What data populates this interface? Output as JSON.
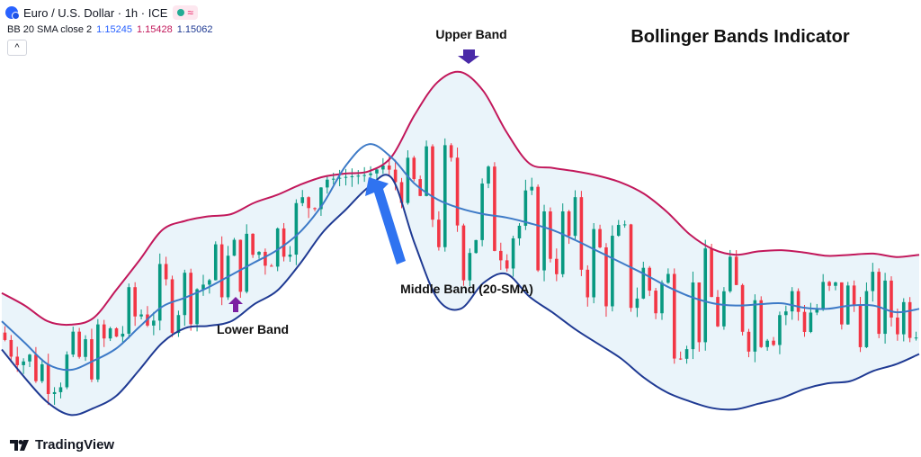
{
  "header": {
    "symbol": "Euro / U.S. Dollar · 1h · ICE",
    "badge_glyph": "≈"
  },
  "indicator": {
    "label": "BB 20 SMA close 2",
    "v1": "1.15245",
    "v2": "1.15428",
    "v3": "1.15062",
    "v1_color": "#2962ff",
    "v2_color": "#c2185b",
    "v3_color": "#1f3a93"
  },
  "collapse_glyph": "^",
  "brand": {
    "name": "TradingView"
  },
  "chart_data": {
    "type": "line",
    "title": "Bollinger Bands Indicator",
    "annotations": [
      "Upper Band",
      "Lower Band",
      "Middle Band (20-SMA)"
    ],
    "x": [
      0,
      10,
      20,
      30,
      40,
      50,
      60,
      70,
      80,
      90,
      100,
      110,
      120,
      130,
      140,
      150,
      160,
      170,
      180,
      190,
      200,
      210,
      220,
      230,
      240,
      250,
      260,
      270,
      280,
      290,
      300,
      310,
      320,
      330,
      340,
      350,
      360,
      370,
      380,
      390,
      400
    ],
    "series": [
      {
        "name": "Upper Band",
        "color": "#c2185b",
        "values": [
          1.0,
          -0.1,
          -1.5,
          -1.8,
          -1.2,
          1.3,
          3.9,
          6.6,
          7.4,
          7.8,
          8.0,
          9.0,
          9.7,
          10.6,
          11.3,
          11.6,
          11.8,
          13.1,
          16.8,
          19.7,
          20.6,
          18.9,
          15.3,
          12.5,
          12.1,
          11.8,
          11.4,
          10.8,
          9.8,
          8.2,
          6.2,
          4.9,
          4.4,
          4.7,
          4.8,
          4.6,
          4.3,
          4.4,
          4.5,
          4.2,
          4.4
        ]
      },
      {
        "name": "Middle Band (20-SMA)",
        "color": "#3d7ac7",
        "values": [
          -1.5,
          -3.4,
          -5.3,
          -5.8,
          -5.0,
          -3.9,
          -2.0,
          -0.2,
          0.6,
          1.5,
          2.6,
          3.7,
          4.8,
          6.4,
          8.9,
          12.3,
          14.2,
          13.0,
          10.7,
          9.3,
          8.5,
          8.0,
          7.7,
          7.2,
          6.6,
          5.7,
          4.7,
          3.7,
          2.7,
          1.6,
          0.7,
          0.1,
          -0.1,
          0.0,
          0.1,
          -0.3,
          -0.4,
          -0.1,
          -0.1,
          -0.7,
          -0.4
        ]
      },
      {
        "name": "Lower Band",
        "color": "#1f3a93",
        "values": [
          -4.0,
          -6.5,
          -8.7,
          -9.8,
          -9.2,
          -8.1,
          -5.8,
          -3.4,
          -2.1,
          -1.9,
          -1.5,
          0.0,
          1.2,
          3.6,
          6.4,
          8.4,
          10.4,
          11.2,
          5.4,
          0.5,
          -0.4,
          1.9,
          2.7,
          0.7,
          -0.7,
          -2.2,
          -3.5,
          -4.8,
          -6.5,
          -7.8,
          -8.6,
          -9.2,
          -9.3,
          -8.8,
          -8.3,
          -7.5,
          -7.0,
          -6.8,
          -5.9,
          -5.3,
          -4.4
        ]
      }
    ],
    "candles_shown": "hourly candlesticks between the bands",
    "up_color": "#089981",
    "down_color": "#f23645",
    "band_fill_color": "#eaf4fa",
    "grid": false
  }
}
